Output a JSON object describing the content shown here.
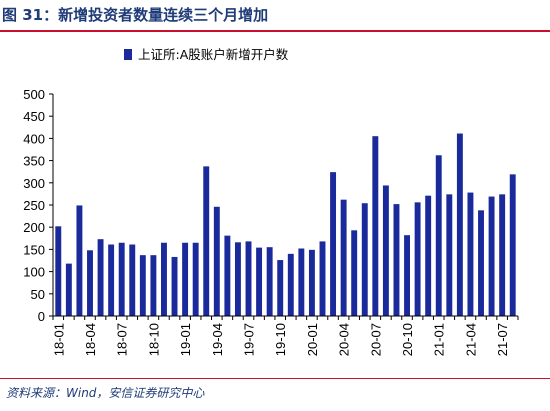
{
  "header": {
    "title": "图 31：新增投资者数量连续三个月增加"
  },
  "footer": {
    "source": "资料来源：Wind，安信证券研究中心"
  },
  "colors": {
    "bar": "#1b2a9b",
    "title": "#1f3c78",
    "rule": "#c8102e",
    "axis": "#000000"
  },
  "chart_data": {
    "type": "bar",
    "title": "",
    "xlabel": "",
    "ylabel": "",
    "ylim": [
      0,
      500
    ],
    "yticks": [
      0,
      50,
      100,
      150,
      200,
      250,
      300,
      350,
      400,
      450,
      500
    ],
    "grid": false,
    "legend_position": "top-left",
    "categories": [
      "18-01",
      "18-02",
      "18-03",
      "18-04",
      "18-05",
      "18-06",
      "18-07",
      "18-08",
      "18-09",
      "18-10",
      "18-11",
      "18-12",
      "19-01",
      "19-02",
      "19-03",
      "19-04",
      "19-05",
      "19-06",
      "19-07",
      "19-08",
      "19-09",
      "19-10",
      "19-11",
      "19-12",
      "20-01",
      "20-02",
      "20-03",
      "20-04",
      "20-05",
      "20-06",
      "20-07",
      "20-08",
      "20-09",
      "20-10",
      "20-11",
      "20-12",
      "21-01",
      "21-02",
      "21-03",
      "21-04",
      "21-05",
      "21-06",
      "21-07",
      "21-08"
    ],
    "tick_labels": [
      "18-01",
      "18-04",
      "18-07",
      "18-10",
      "19-01",
      "19-04",
      "19-07",
      "19-10",
      "20-01",
      "20-04",
      "20-07",
      "20-10",
      "21-01",
      "21-04",
      "21-07"
    ],
    "series": [
      {
        "name": "上证所:A股账户新增开户数",
        "values": [
          202,
          118,
          249,
          148,
          173,
          161,
          165,
          161,
          137,
          137,
          165,
          133,
          165,
          165,
          337,
          246,
          181,
          166,
          168,
          154,
          155,
          126,
          140,
          152,
          149,
          168,
          324,
          262,
          193,
          254,
          405,
          294,
          252,
          182,
          256,
          271,
          362,
          274,
          411,
          278,
          238,
          269,
          274,
          319
        ]
      }
    ]
  }
}
